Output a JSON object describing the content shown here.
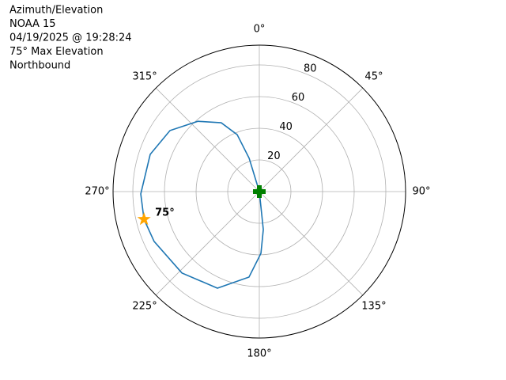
{
  "chart_data": {
    "type": "polar",
    "title_lines": [
      "Azimuth/Elevation",
      "NOAA 15",
      "04/19/2025 @ 19:28:24",
      "75° Max Elevation",
      "Northbound"
    ],
    "theta_direction": "clockwise",
    "theta_zero": "N",
    "rlim": [
      0,
      92.5
    ],
    "rticks": [
      20,
      40,
      60,
      80
    ],
    "thetaticks": [
      {
        "value": 0,
        "label": "0°"
      },
      {
        "value": 45,
        "label": "45°"
      },
      {
        "value": 90,
        "label": "90°"
      },
      {
        "value": 135,
        "label": "135°"
      },
      {
        "value": 180,
        "label": "180°"
      },
      {
        "value": 225,
        "label": "225°"
      },
      {
        "value": 270,
        "label": "270°"
      },
      {
        "value": 315,
        "label": "315°"
      }
    ],
    "grid": true,
    "series": [
      {
        "color": "#1f77b4",
        "theta": [
          343,
          343,
          343,
          338.7,
          331,
          318.8,
          304.3,
          288.8,
          268.9,
          256.5,
          244.7,
          223.6,
          203.5,
          186.9,
          178.5,
          174,
          174,
          174
        ],
        "r": [
          0,
          10.4,
          22,
          38.6,
          49.7,
          59,
          68.4,
          72.9,
          75,
          75,
          73.6,
          71,
          66.5,
          54.4,
          39,
          24.1,
          10,
          0
        ]
      }
    ],
    "max_marker": {
      "theta": 256.5,
      "r": 75,
      "label": "75°",
      "color": "#ffa500"
    },
    "start_marker": {
      "theta": 0,
      "r": 0,
      "color": "#008000"
    }
  }
}
